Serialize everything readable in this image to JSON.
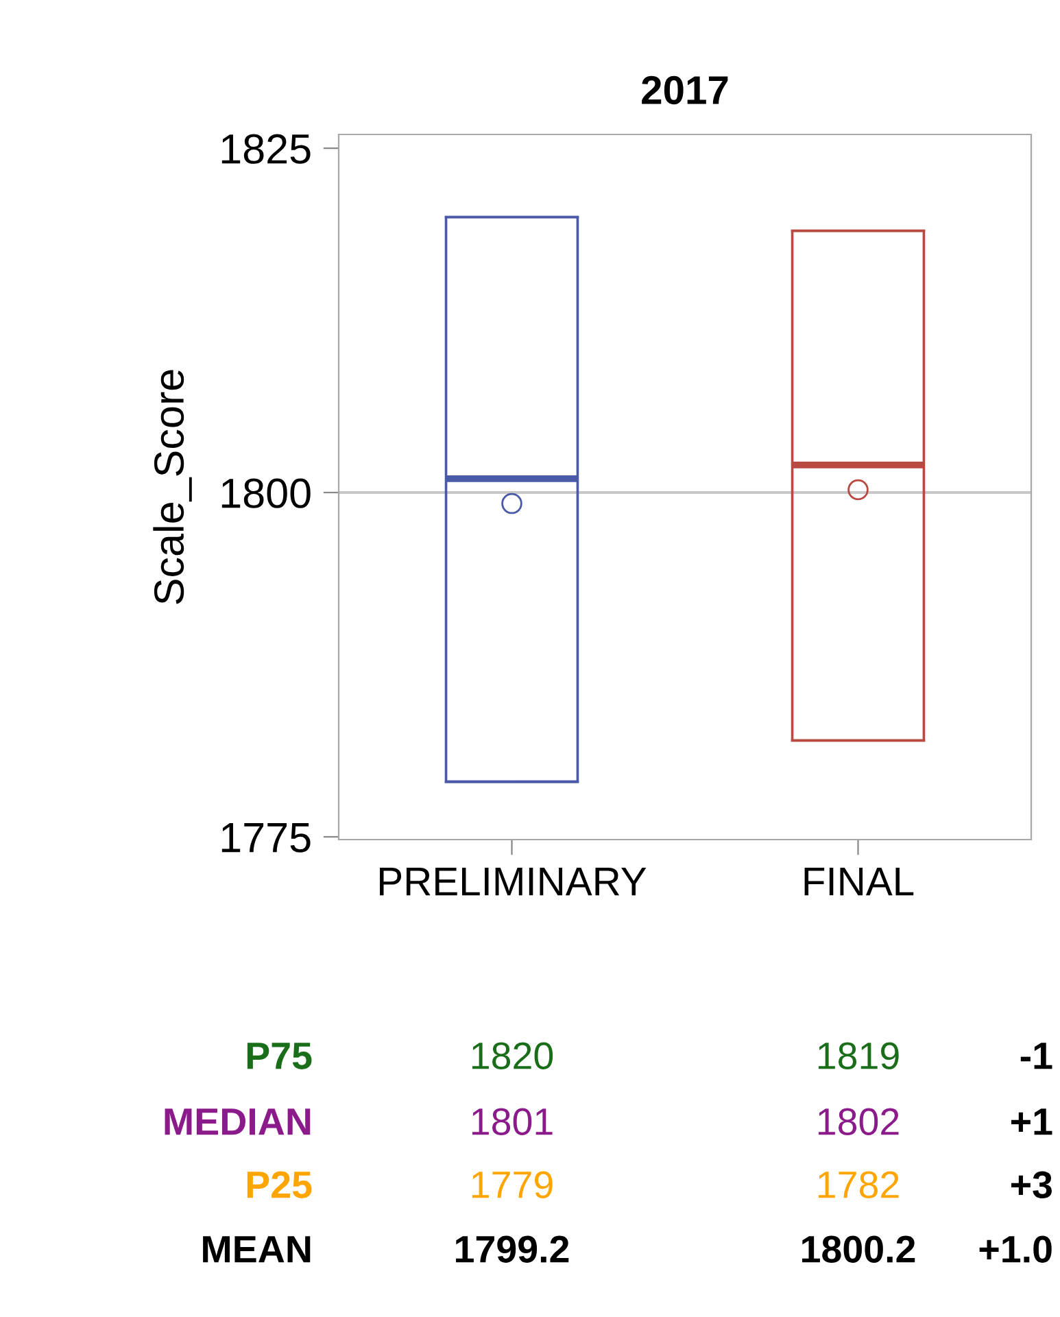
{
  "chart_data": {
    "type": "box",
    "title": "2017",
    "ylabel": "Scale_Score",
    "categories": [
      "PRELIMINARY",
      "FINAL"
    ],
    "boxes": [
      {
        "low": 1779,
        "q1": 1779,
        "median": 1801,
        "q3": 1820,
        "high": 1820,
        "mean": 1799.2
      },
      {
        "low": 1782,
        "q1": 1782,
        "median": 1802,
        "q3": 1819,
        "high": 1819,
        "mean": 1800.2
      }
    ],
    "colors": [
      "#4a5aa8",
      "#b84a42"
    ],
    "ylim": [
      1774.8,
      1826
    ],
    "yticks": [
      1775,
      1800,
      1825
    ],
    "ref_lines": [
      {
        "axis": "y",
        "value": 1800,
        "color": "#c8c8c8"
      }
    ],
    "grid": false,
    "annotations": [
      "P75",
      "1820",
      "1819",
      "-1",
      "MEDIAN",
      "1801",
      "1802",
      "+1",
      "P25",
      "1779",
      "1782",
      "+3",
      "MEAN",
      "1799.2",
      "1800.2",
      "+1.0"
    ]
  }
}
